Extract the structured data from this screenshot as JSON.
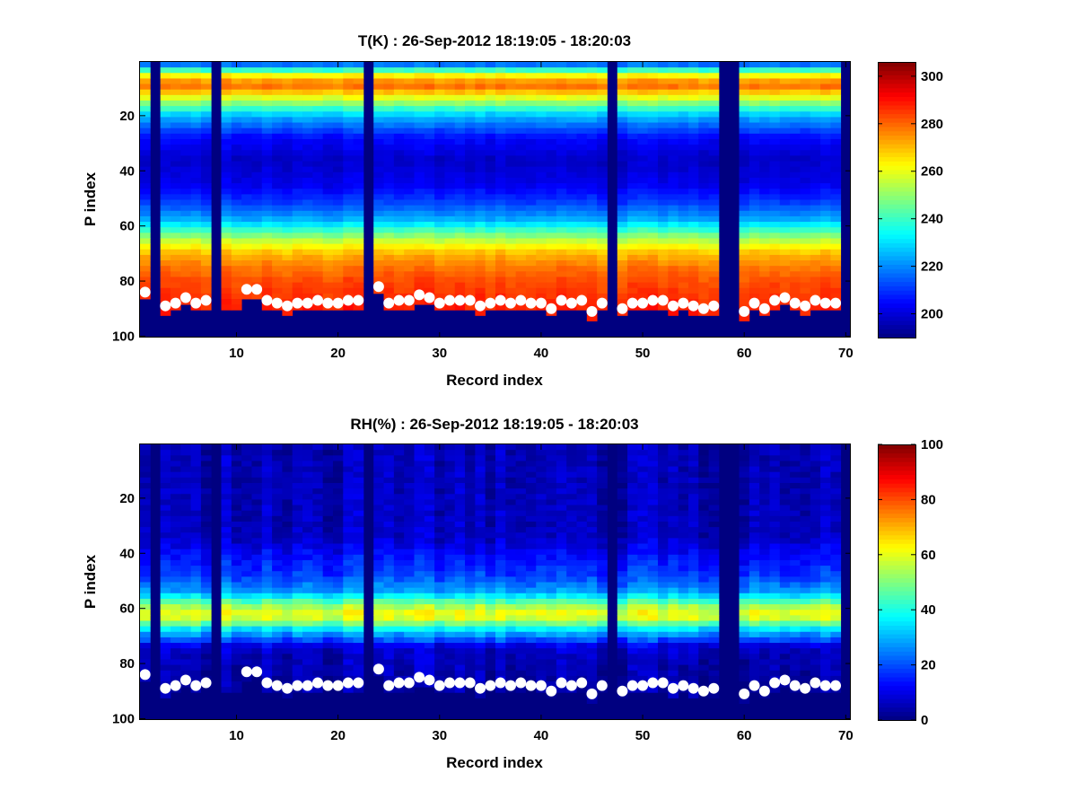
{
  "figure": {
    "background": "#ffffff"
  },
  "chart_data": [
    {
      "type": "heatmap",
      "title": "T(K) : 26-Sep-2012 18:19:05 - 18:20:03",
      "xlabel": "Record index",
      "ylabel": "P index",
      "xlim": [
        0.5,
        70.5
      ],
      "ylim": [
        100,
        1
      ],
      "y_direction": "reversed",
      "xticks": [
        10,
        20,
        30,
        40,
        50,
        60,
        70
      ],
      "yticks": [
        20,
        40,
        60,
        80,
        100
      ],
      "colormap": "jet",
      "colorbar": {
        "clim": [
          190,
          306
        ],
        "ticks": [
          200,
          220,
          240,
          260,
          280,
          300
        ]
      },
      "missing_records": [
        2,
        8,
        23,
        47,
        58,
        59,
        70
      ],
      "profile_keypoints": [
        [
          1,
          212
        ],
        [
          6,
          268
        ],
        [
          9,
          280
        ],
        [
          13,
          262
        ],
        [
          20,
          226
        ],
        [
          28,
          205
        ],
        [
          36,
          198
        ],
        [
          45,
          202
        ],
        [
          52,
          212
        ],
        [
          58,
          225
        ],
        [
          62,
          242
        ],
        [
          66,
          258
        ],
        [
          70,
          270
        ],
        [
          75,
          278
        ],
        [
          80,
          283
        ],
        [
          90,
          288
        ],
        [
          100,
          288
        ]
      ],
      "surface_markers": {
        "x": [
          1,
          3,
          4,
          5,
          6,
          7,
          11,
          12,
          13,
          14,
          15,
          16,
          17,
          18,
          19,
          20,
          21,
          22,
          24,
          25,
          26,
          27,
          28,
          29,
          30,
          31,
          32,
          33,
          34,
          35,
          36,
          37,
          38,
          39,
          40,
          41,
          42,
          43,
          44,
          45,
          46,
          48,
          49,
          50,
          51,
          52,
          53,
          54,
          55,
          56,
          57,
          60,
          61,
          62,
          63,
          64,
          65,
          66,
          67,
          68,
          69
        ],
        "y": [
          84,
          89,
          88,
          86,
          88,
          87,
          83,
          83,
          87,
          88,
          89,
          88,
          88,
          87,
          88,
          88,
          87,
          87,
          82,
          88,
          87,
          87,
          85,
          86,
          88,
          87,
          87,
          87,
          89,
          88,
          87,
          88,
          87,
          88,
          88,
          90,
          87,
          88,
          87,
          91,
          88,
          90,
          88,
          88,
          87,
          87,
          89,
          88,
          89,
          90,
          89,
          91,
          88,
          90,
          87,
          86,
          88,
          89,
          87,
          88,
          88
        ]
      }
    },
    {
      "type": "heatmap",
      "title": "RH(%) : 26-Sep-2012 18:19:05 - 18:20:03",
      "xlabel": "Record index",
      "ylabel": "P index",
      "xlim": [
        0.5,
        70.5
      ],
      "ylim": [
        100,
        1
      ],
      "y_direction": "reversed",
      "xticks": [
        10,
        20,
        30,
        40,
        50,
        60,
        70
      ],
      "yticks": [
        20,
        40,
        60,
        80,
        100
      ],
      "colormap": "jet",
      "colorbar": {
        "clim": [
          0,
          100
        ],
        "ticks": [
          0,
          20,
          40,
          60,
          80,
          100
        ]
      },
      "missing_records": [
        2,
        8,
        23,
        47,
        58,
        59,
        70
      ],
      "profile_keypoints": [
        [
          1,
          5
        ],
        [
          34,
          6
        ],
        [
          40,
          12
        ],
        [
          48,
          18
        ],
        [
          54,
          28
        ],
        [
          58,
          48
        ],
        [
          61,
          60
        ],
        [
          64,
          58
        ],
        [
          67,
          38
        ],
        [
          71,
          20
        ],
        [
          76,
          12
        ],
        [
          85,
          10
        ],
        [
          100,
          8
        ]
      ],
      "surface_markers": {
        "x": [
          1,
          3,
          4,
          5,
          6,
          7,
          11,
          12,
          13,
          14,
          15,
          16,
          17,
          18,
          19,
          20,
          21,
          22,
          24,
          25,
          26,
          27,
          28,
          29,
          30,
          31,
          32,
          33,
          34,
          35,
          36,
          37,
          38,
          39,
          40,
          41,
          42,
          43,
          44,
          45,
          46,
          48,
          49,
          50,
          51,
          52,
          53,
          54,
          55,
          56,
          57,
          60,
          61,
          62,
          63,
          64,
          65,
          66,
          67,
          68,
          69
        ],
        "y": [
          84,
          89,
          88,
          86,
          88,
          87,
          83,
          83,
          87,
          88,
          89,
          88,
          88,
          87,
          88,
          88,
          87,
          87,
          82,
          88,
          87,
          87,
          85,
          86,
          88,
          87,
          87,
          87,
          89,
          88,
          87,
          88,
          87,
          88,
          88,
          90,
          87,
          88,
          87,
          91,
          88,
          90,
          88,
          88,
          87,
          87,
          89,
          88,
          89,
          90,
          89,
          91,
          88,
          90,
          87,
          86,
          88,
          89,
          87,
          88,
          88
        ]
      }
    }
  ]
}
